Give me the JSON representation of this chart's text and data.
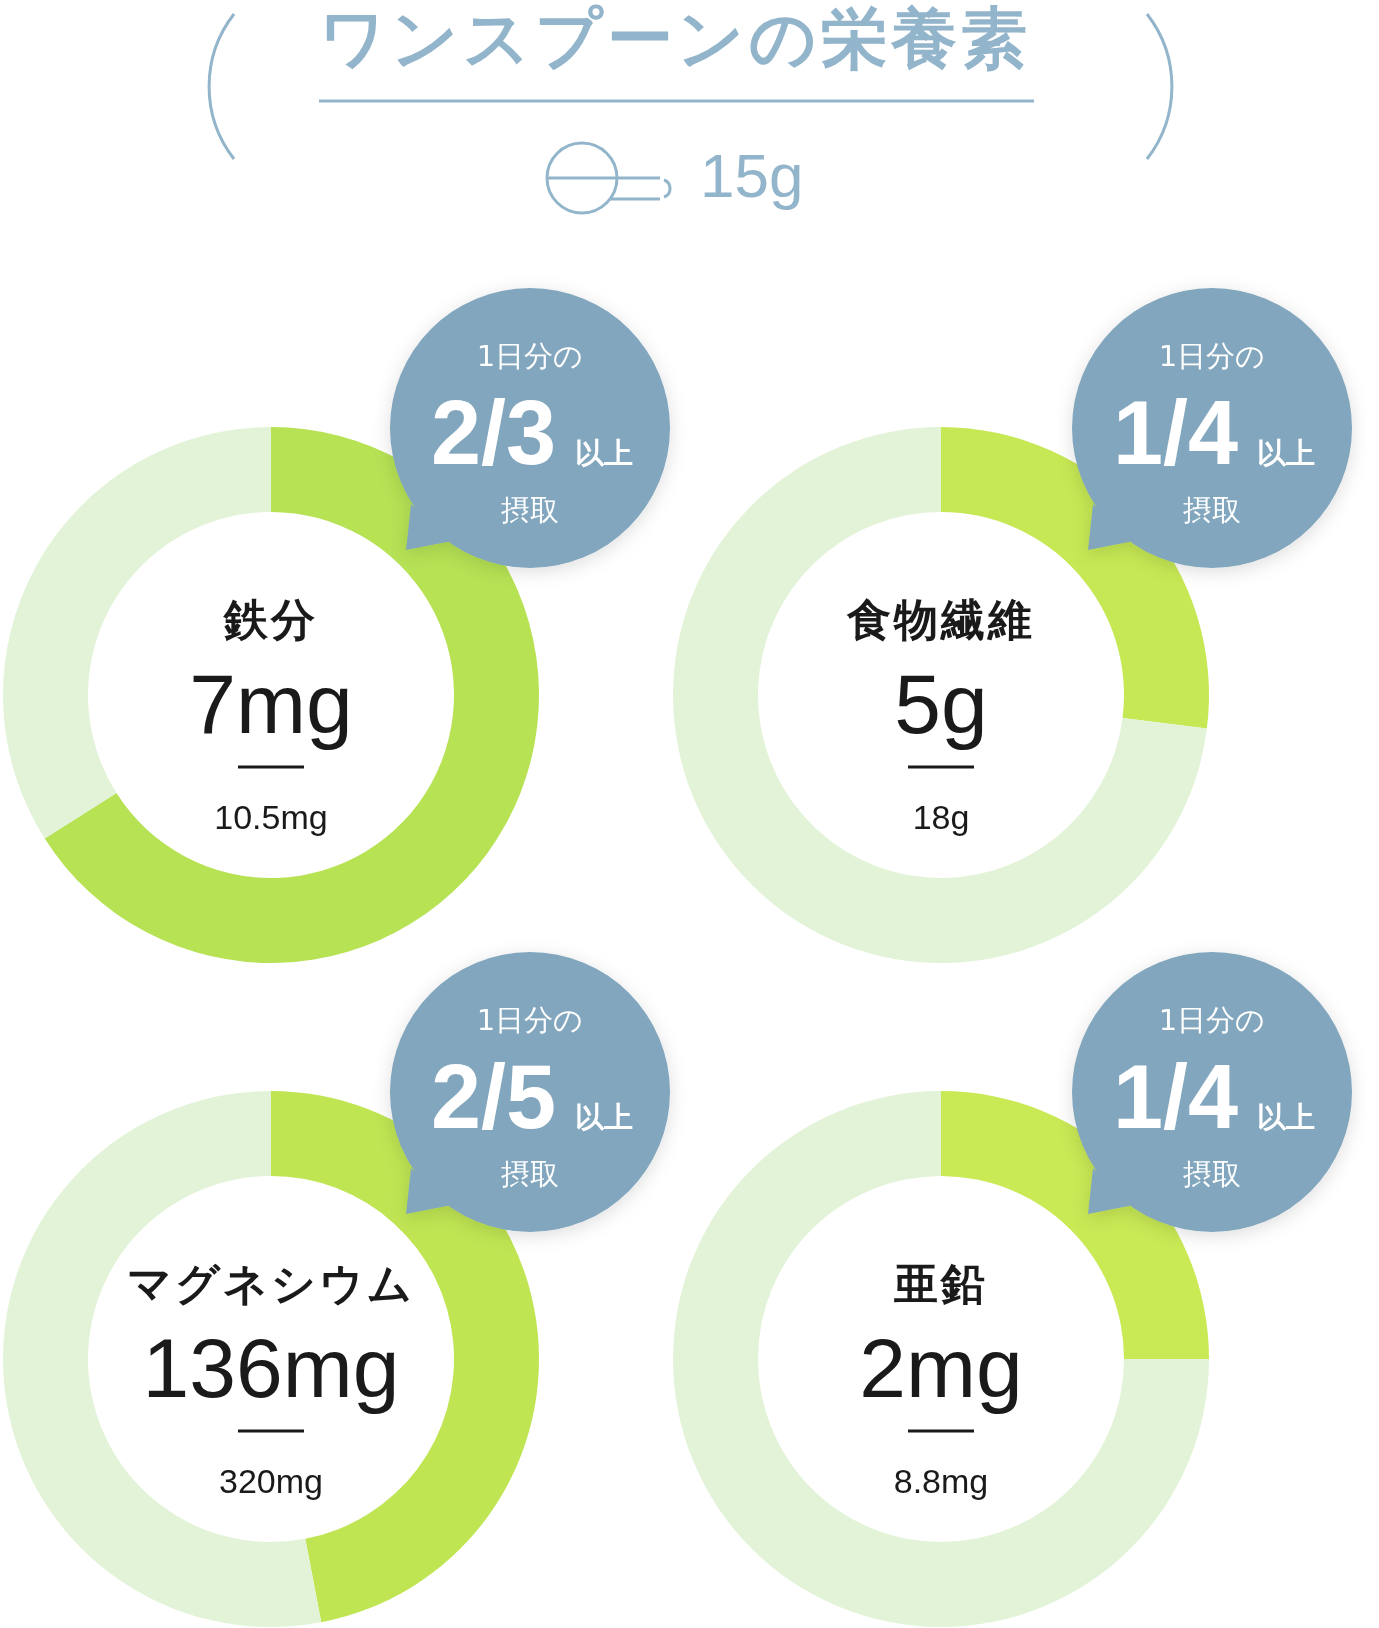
{
  "chart_data": [
    {
      "type": "other",
      "title": "ワンスプーンの栄養素",
      "annotations": [
        "15g"
      ]
    },
    {
      "type": "donut",
      "title": "鉄分",
      "categories": [
        null,
        null
      ],
      "values": [
        66,
        34
      ],
      "colors": [
        "#b6e254",
        "#e2f3d7"
      ],
      "annotations": [
        "7mg",
        "10.5mg",
        "1日分の",
        "2/3",
        "以上",
        "摂取"
      ]
    },
    {
      "type": "donut",
      "title": "食物繊維",
      "categories": [
        null,
        null
      ],
      "values": [
        27,
        73
      ],
      "colors": [
        "#c6e854",
        "#e2f3d7"
      ],
      "annotations": [
        "5g",
        "18g",
        "1日分の",
        "1/4",
        "以上",
        "摂取"
      ]
    },
    {
      "type": "donut",
      "title": "マグネシウム",
      "categories": [
        null,
        null
      ],
      "values": [
        47,
        53
      ],
      "colors": [
        "#bfe553",
        "#e2f3d7"
      ],
      "annotations": [
        "136mg",
        "320mg",
        "1日分の",
        "2/5",
        "以上",
        "摂取"
      ]
    },
    {
      "type": "donut",
      "title": "亜鉛",
      "categories": [
        null,
        null
      ],
      "values": [
        25,
        75
      ],
      "colors": [
        "#c9e955",
        "#e2f3d7"
      ],
      "annotations": [
        "2mg",
        "8.8mg",
        "1日分の",
        "1/4",
        "以上",
        "摂取"
      ]
    }
  ]
}
